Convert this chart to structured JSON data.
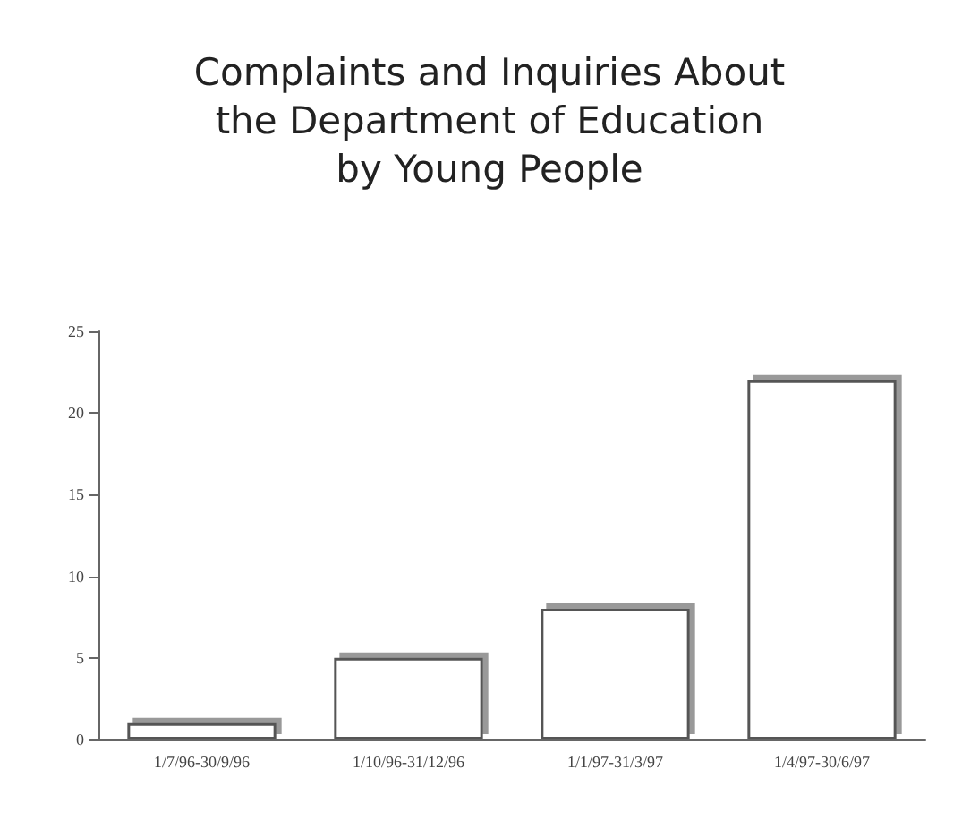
{
  "chart_data": {
    "type": "bar",
    "title": "Complaints and Inquiries About\nthe Department of Education\nby Young People",
    "categories": [
      "1/7/96-30/9/96",
      "1/10/96-31/12/96",
      "1/1/97-31/3/97",
      "1/4/97-30/6/97"
    ],
    "values": [
      1,
      5,
      8,
      22
    ],
    "color": "#ffffff",
    "ylim": [
      0,
      25
    ],
    "yticks": [
      0,
      5,
      10,
      15,
      20,
      25
    ],
    "grid": false
  }
}
